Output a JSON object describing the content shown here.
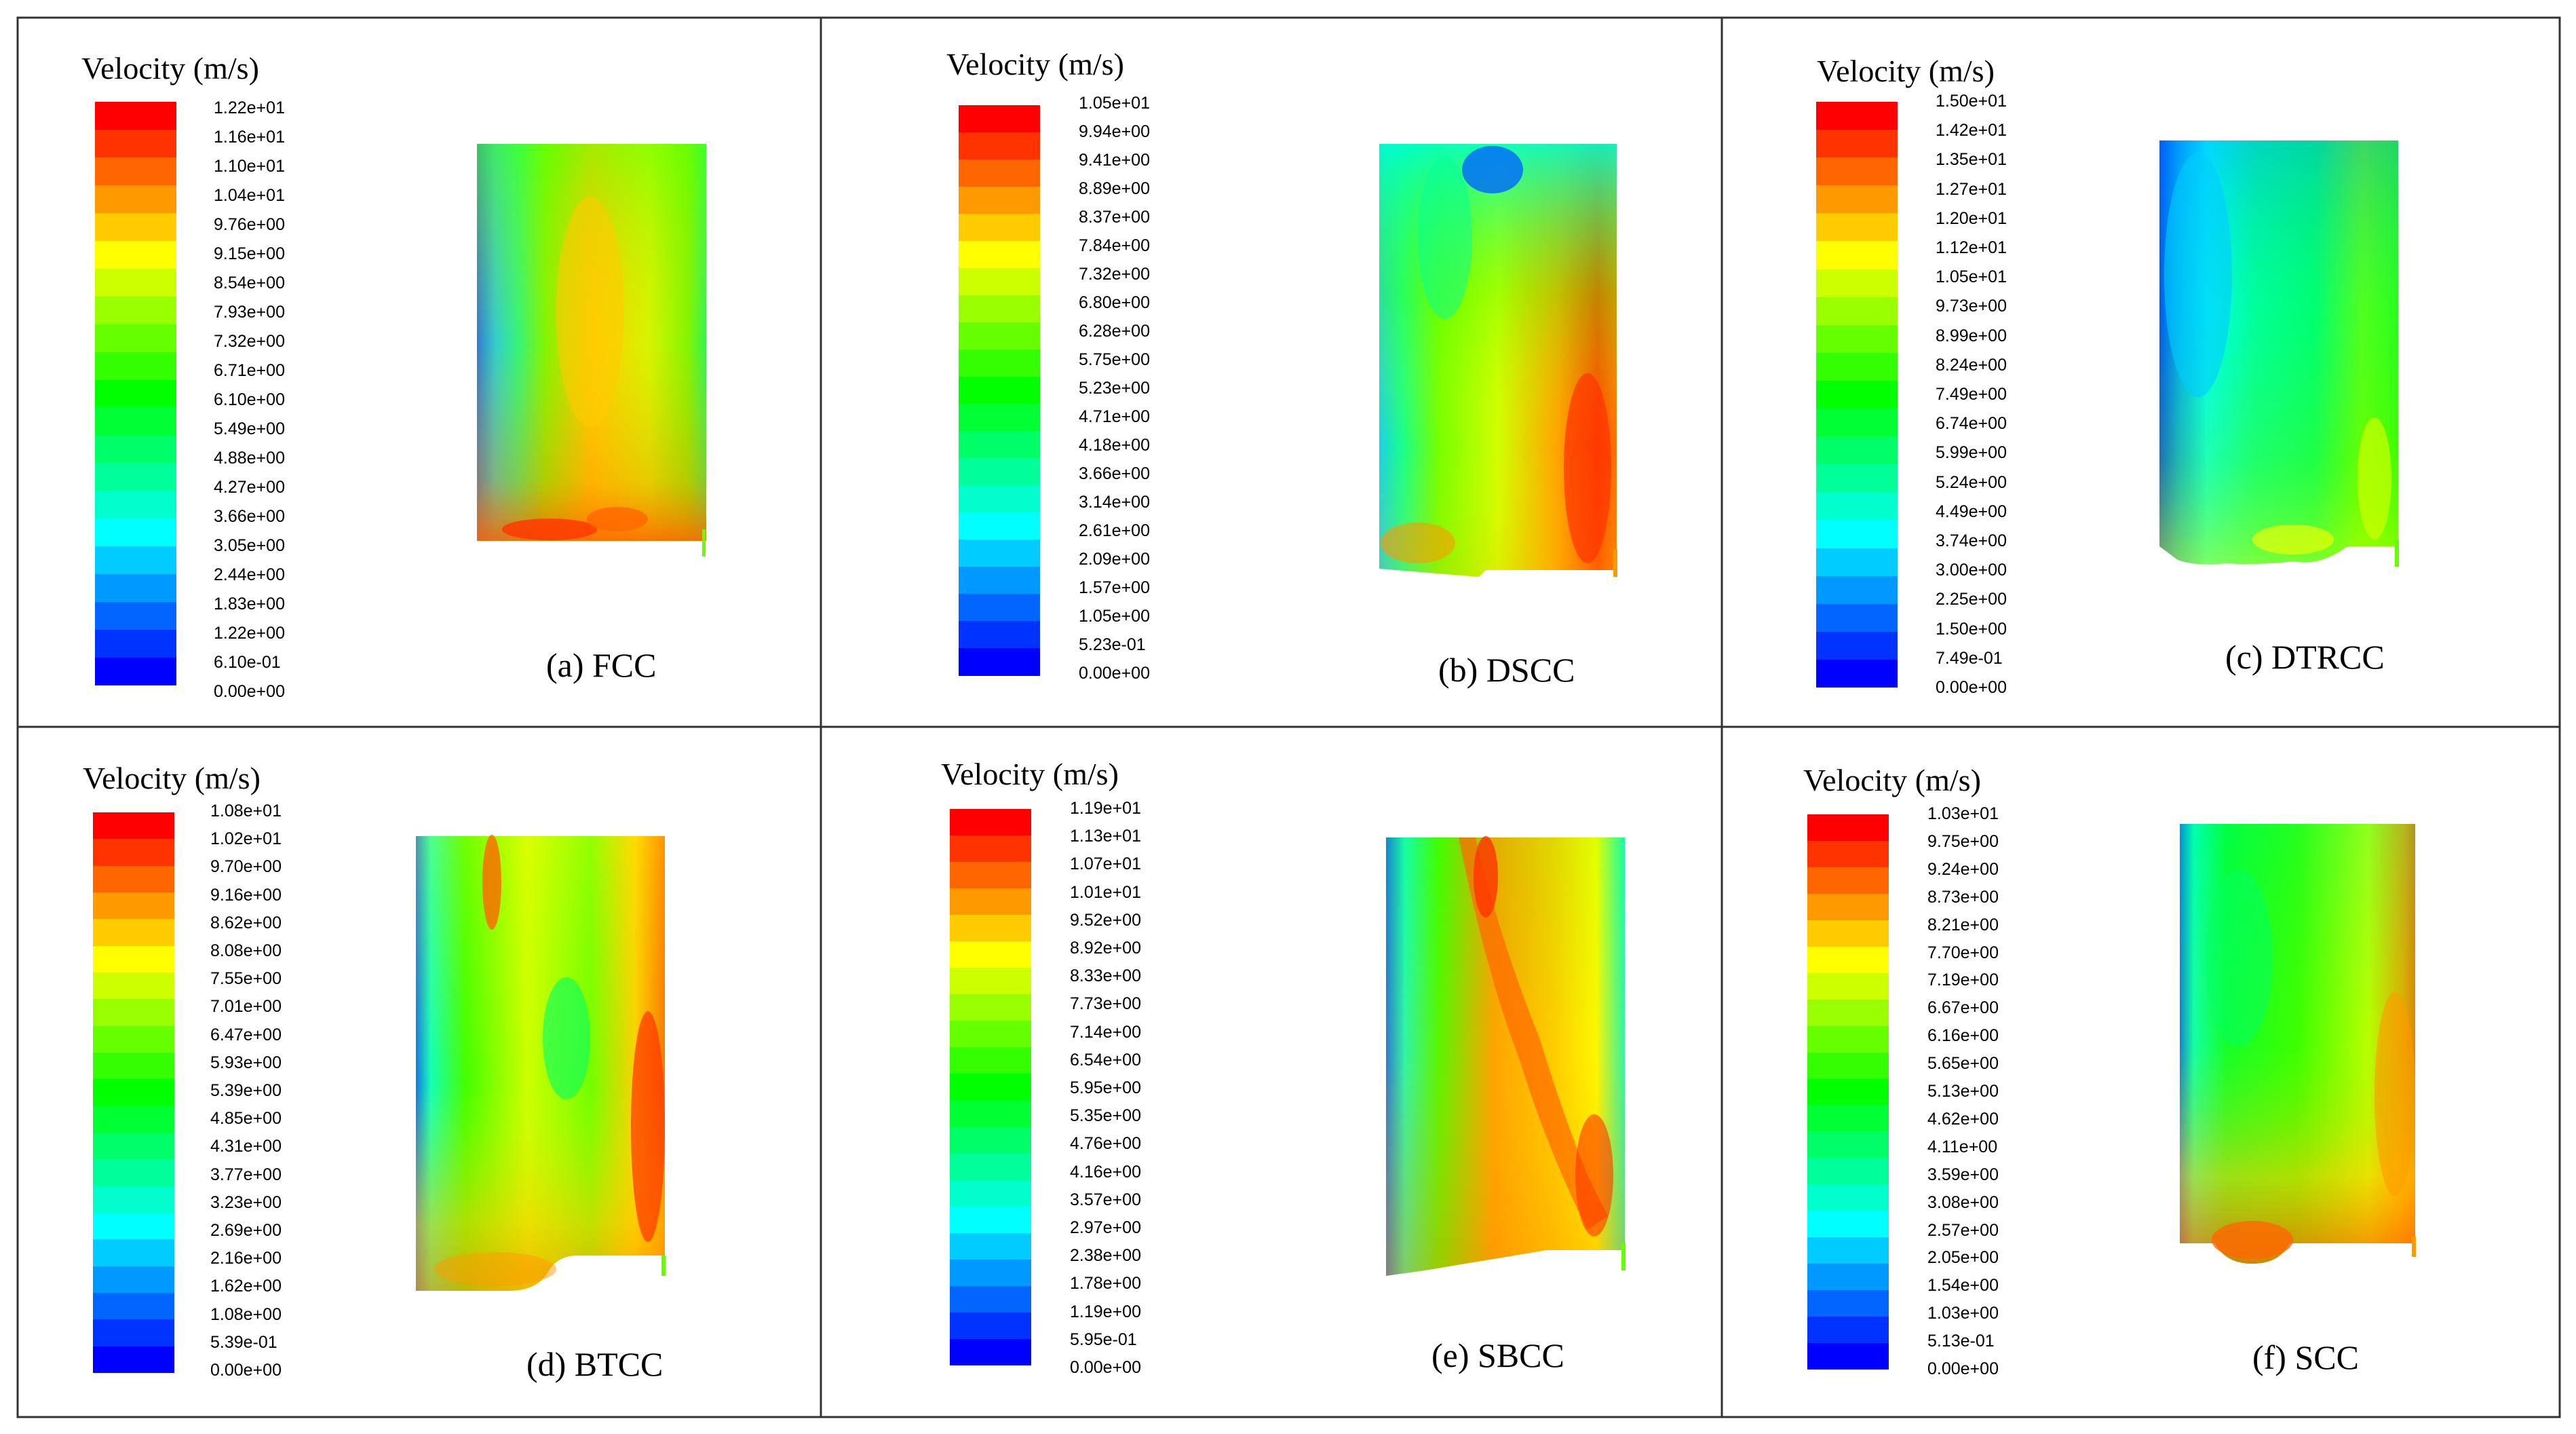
{
  "figure": {
    "colormap": [
      "#0000ff",
      "#0033ff",
      "#0066ff",
      "#0099ff",
      "#00ccff",
      "#00ffff",
      "#00ffcc",
      "#00ff99",
      "#00ff66",
      "#00ff33",
      "#00ff00",
      "#33ff00",
      "#66ff00",
      "#99ff00",
      "#ccff00",
      "#ffff00",
      "#ffcc00",
      "#ff9900",
      "#ff6600",
      "#ff3300",
      "#ff0000"
    ],
    "panels": [
      {
        "title": "Velocity (m/s)",
        "caption": "(a) FCC",
        "ticks": [
          "1.22e+01",
          "1.16e+01",
          "1.10e+01",
          "1.04e+01",
          "9.76e+00",
          "9.15e+00",
          "8.54e+00",
          "7.93e+00",
          "7.32e+00",
          "6.71e+00",
          "6.10e+00",
          "5.49e+00",
          "4.88e+00",
          "4.27e+00",
          "3.66e+00",
          "3.05e+00",
          "2.44e+00",
          "1.83e+00",
          "1.22e+00",
          "6.10e-01",
          "0.00e+00"
        ]
      },
      {
        "title": "Velocity (m/s)",
        "caption": "(b) DSCC",
        "ticks": [
          "1.05e+01",
          "9.94e+00",
          "9.41e+00",
          "8.89e+00",
          "8.37e+00",
          "7.84e+00",
          "7.32e+00",
          "6.80e+00",
          "6.28e+00",
          "5.75e+00",
          "5.23e+00",
          "4.71e+00",
          "4.18e+00",
          "3.66e+00",
          "3.14e+00",
          "2.61e+00",
          "2.09e+00",
          "1.57e+00",
          "1.05e+00",
          "5.23e-01",
          "0.00e+00"
        ]
      },
      {
        "title": "Velocity (m/s)",
        "caption": "(c) DTRCC",
        "ticks": [
          "1.50e+01",
          "1.42e+01",
          "1.35e+01",
          "1.27e+01",
          "1.20e+01",
          "1.12e+01",
          "1.05e+01",
          "9.73e+00",
          "8.99e+00",
          "8.24e+00",
          "7.49e+00",
          "6.74e+00",
          "5.99e+00",
          "5.24e+00",
          "4.49e+00",
          "3.74e+00",
          "3.00e+00",
          "2.25e+00",
          "1.50e+00",
          "7.49e-01",
          "0.00e+00"
        ]
      },
      {
        "title": "Velocity (m/s)",
        "caption": "(d) BTCC",
        "ticks": [
          "1.08e+01",
          "1.02e+01",
          "9.70e+00",
          "9.16e+00",
          "8.62e+00",
          "8.08e+00",
          "7.55e+00",
          "7.01e+00",
          "6.47e+00",
          "5.93e+00",
          "5.39e+00",
          "4.85e+00",
          "4.31e+00",
          "3.77e+00",
          "3.23e+00",
          "2.69e+00",
          "2.16e+00",
          "1.62e+00",
          "1.08e+00",
          "5.39e-01",
          "0.00e+00"
        ]
      },
      {
        "title": "Velocity (m/s)",
        "caption": "(e) SBCC",
        "ticks": [
          "1.19e+01",
          "1.13e+01",
          "1.07e+01",
          "1.01e+01",
          "9.52e+00",
          "8.92e+00",
          "8.33e+00",
          "7.73e+00",
          "7.14e+00",
          "6.54e+00",
          "5.95e+00",
          "5.35e+00",
          "4.76e+00",
          "4.16e+00",
          "3.57e+00",
          "2.97e+00",
          "2.38e+00",
          "1.78e+00",
          "1.19e+00",
          "5.95e-01",
          "0.00e+00"
        ]
      },
      {
        "title": "Velocity (m/s)",
        "caption": "(f) SCC",
        "ticks": [
          "1.03e+01",
          "9.75e+00",
          "9.24e+00",
          "8.73e+00",
          "8.21e+00",
          "7.70e+00",
          "7.19e+00",
          "6.67e+00",
          "6.16e+00",
          "5.65e+00",
          "5.13e+00",
          "4.62e+00",
          "4.11e+00",
          "3.59e+00",
          "3.08e+00",
          "2.57e+00",
          "2.05e+00",
          "1.54e+00",
          "1.03e+00",
          "5.13e-01",
          "0.00e+00"
        ]
      }
    ]
  }
}
